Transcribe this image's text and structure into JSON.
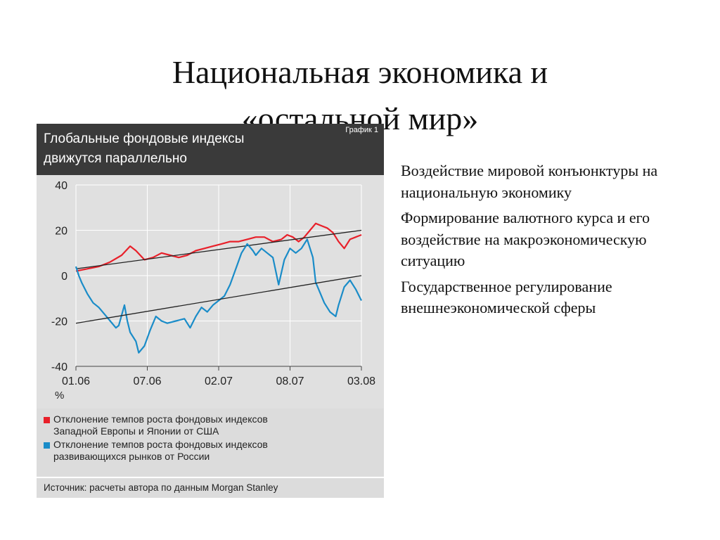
{
  "slide": {
    "title_line1": "Национальная экономика и",
    "title_line2": "«остальной мир»",
    "bullets": [
      "Воздействие мировой конъюнктуры на национальную экономику",
      "Формирование валютного курса и его воздействие на макроэкономическую ситуацию",
      "Государственное регулирование внешнеэкономической сферы"
    ]
  },
  "chart_data": {
    "type": "line",
    "title_line1": "Глобальные фондовые индексы",
    "title_line2": "движутся параллельно",
    "badge": "График 1",
    "unit_label": "%",
    "x_ticks": [
      "01.06",
      "07.06",
      "02.07",
      "08.07",
      "03.08"
    ],
    "y_ticks": [
      "40",
      "20",
      "0",
      "-20",
      "-40"
    ],
    "ylim": [
      -40,
      40
    ],
    "grid": true,
    "source": "Источник: расчеты автора по данным Morgan Stanley",
    "series": [
      {
        "name": "Отклонение темпов роста фондовых индексов Западной Европы и Японии от США",
        "name_line1": "Отклонение темпов роста фондовых индексов",
        "name_line2": "Западной Европы и Японии от США",
        "color": "#e8202a",
        "x": [
          0,
          0.04,
          0.08,
          0.12,
          0.16,
          0.19,
          0.21,
          0.24,
          0.27,
          0.3,
          0.33,
          0.36,
          0.39,
          0.42,
          0.45,
          0.48,
          0.51,
          0.54,
          0.57,
          0.6,
          0.63,
          0.66,
          0.69,
          0.72,
          0.74,
          0.76,
          0.78,
          0.8,
          0.82,
          0.84,
          0.86,
          0.88,
          0.9,
          0.92,
          0.94,
          0.96,
          0.98,
          1.0
        ],
        "y": [
          2,
          3,
          4,
          6,
          9,
          13,
          11,
          7,
          8,
          10,
          9,
          8,
          9,
          11,
          12,
          13,
          14,
          15,
          15,
          16,
          17,
          17,
          15,
          16,
          18,
          17,
          15,
          17,
          20,
          23,
          22,
          21,
          19,
          15,
          12,
          16,
          17,
          18
        ],
        "trend": [
          [
            0,
            3
          ],
          [
            1.0,
            20
          ]
        ]
      },
      {
        "name": "Отклонение темпов роста фондовых индексов развивающихся рынков от России",
        "name_line1": "Отклонение темпов роста фондовых индексов",
        "name_line2": "развивающихся рынков от России",
        "color": "#1a8cc8",
        "x": [
          0,
          0.01,
          0.02,
          0.04,
          0.06,
          0.08,
          0.1,
          0.12,
          0.14,
          0.15,
          0.17,
          0.18,
          0.19,
          0.21,
          0.22,
          0.24,
          0.26,
          0.28,
          0.3,
          0.32,
          0.35,
          0.38,
          0.4,
          0.42,
          0.44,
          0.46,
          0.48,
          0.5,
          0.52,
          0.54,
          0.56,
          0.58,
          0.6,
          0.62,
          0.63,
          0.65,
          0.67,
          0.69,
          0.71,
          0.73,
          0.75,
          0.77,
          0.79,
          0.81,
          0.83,
          0.84,
          0.85,
          0.87,
          0.89,
          0.91,
          0.92,
          0.94,
          0.96,
          0.98,
          1.0
        ],
        "y": [
          4,
          0,
          -3,
          -8,
          -12,
          -14,
          -17,
          -20,
          -23,
          -22,
          -13,
          -20,
          -25,
          -29,
          -34,
          -31,
          -24,
          -18,
          -20,
          -21,
          -20,
          -19,
          -23,
          -18,
          -14,
          -16,
          -13,
          -11,
          -9,
          -4,
          3,
          10,
          14,
          11,
          9,
          12,
          10,
          8,
          -4,
          7,
          12,
          10,
          12,
          16,
          8,
          -3,
          -6,
          -12,
          -16,
          -18,
          -13,
          -5,
          -2,
          -6,
          -11
        ],
        "trend": [
          [
            0,
            -21
          ],
          [
            1.0,
            0
          ]
        ]
      }
    ]
  }
}
